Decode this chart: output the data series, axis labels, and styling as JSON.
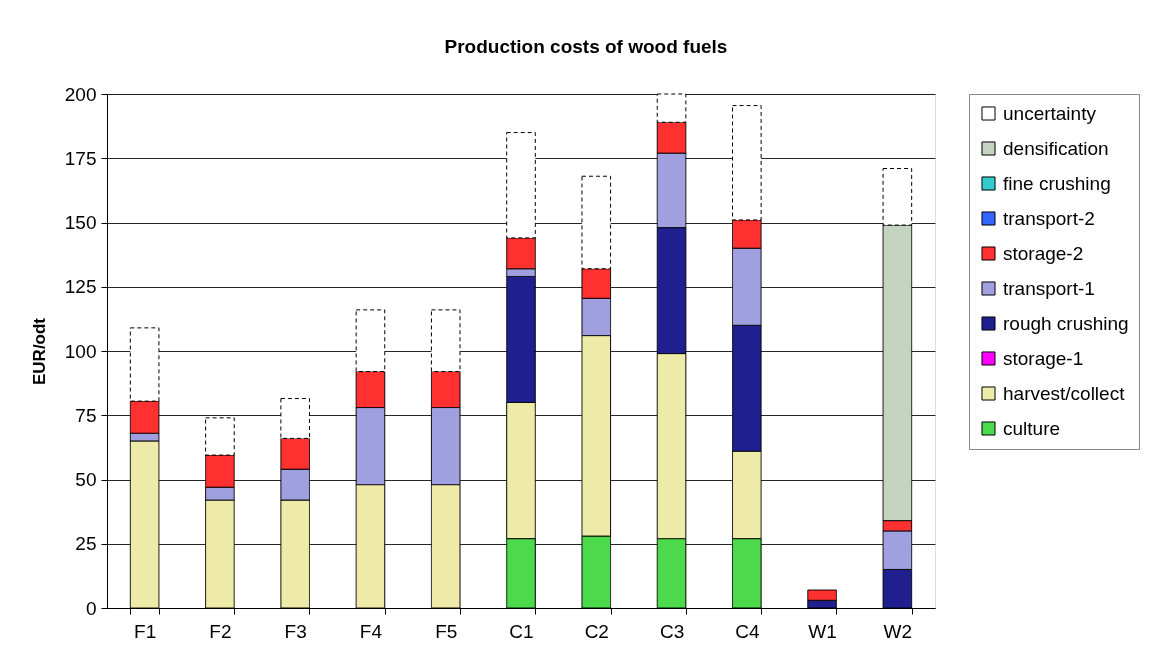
{
  "chart_data": {
    "type": "bar",
    "title": "Production costs of wood fuels",
    "ylabel": "EUR/odt",
    "categories": [
      "F1",
      "F2",
      "F3",
      "F4",
      "F5",
      "C1",
      "C2",
      "C3",
      "C4",
      "W1",
      "W2"
    ],
    "stacked": true,
    "ylim": [
      0,
      200
    ],
    "yticks": [
      0,
      25,
      50,
      75,
      100,
      125,
      150,
      175,
      200
    ],
    "grid": "y",
    "legend": "right",
    "series": [
      {
        "name": "culture",
        "color": "#4cd94c",
        "values": [
          null,
          null,
          null,
          null,
          null,
          27,
          28,
          27,
          27,
          null,
          null
        ]
      },
      {
        "name": "harvest/collect",
        "color": "#eeeaa8",
        "values": [
          65,
          42,
          42,
          48,
          48,
          53,
          78,
          72,
          34,
          null,
          null
        ]
      },
      {
        "name": "storage-1",
        "color": "#ff00ff",
        "values": [
          null,
          null,
          null,
          null,
          null,
          null,
          null,
          null,
          null,
          null,
          null
        ]
      },
      {
        "name": "rough crushing",
        "color": "#1f1f8f",
        "values": [
          null,
          null,
          null,
          null,
          null,
          49,
          null,
          49,
          49,
          3,
          15
        ]
      },
      {
        "name": "transport-1",
        "color": "#a0a0e0",
        "values": [
          3,
          5,
          12,
          30,
          30,
          3,
          14.5,
          29,
          30,
          null,
          15
        ]
      },
      {
        "name": "storage-2",
        "color": "#ff3030",
        "values": [
          12.5,
          12.5,
          12,
          14,
          14,
          12,
          11.5,
          12,
          11,
          4,
          4
        ]
      },
      {
        "name": "transport-2",
        "color": "#3366ff",
        "values": [
          null,
          null,
          null,
          null,
          null,
          null,
          null,
          null,
          null,
          null,
          null
        ]
      },
      {
        "name": "fine crushing",
        "color": "#33cccc",
        "values": [
          null,
          null,
          null,
          null,
          null,
          null,
          null,
          null,
          null,
          null,
          null
        ]
      },
      {
        "name": "densification",
        "color": "#c4d4c0",
        "values": [
          null,
          null,
          null,
          null,
          null,
          null,
          null,
          null,
          null,
          null,
          115
        ]
      },
      {
        "name": "uncertainty",
        "color": "#ffffff",
        "line_style": "dashed",
        "values": [
          28.5,
          14.5,
          15.5,
          24,
          24,
          41,
          36,
          11,
          44.5,
          null,
          22
        ]
      }
    ]
  }
}
